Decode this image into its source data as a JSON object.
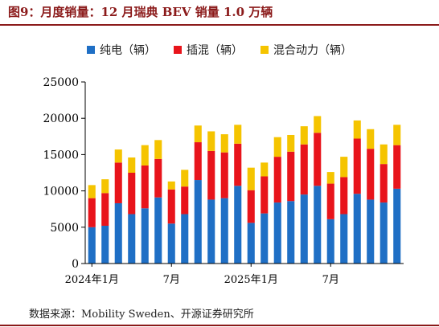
{
  "figure": {
    "title": "图9：月度销量：12 月瑞典 BEV 销量 1.0 万辆",
    "source": "数据来源：Mobility Sweden、开源证券研究所"
  },
  "chart_data": {
    "type": "bar",
    "stacked": true,
    "title": "",
    "xlabel": "",
    "ylabel": "",
    "ylim": [
      0,
      25000
    ],
    "yticks": [
      0,
      5000,
      10000,
      15000,
      20000,
      25000
    ],
    "grid": false,
    "legend_position": "top",
    "categories": [
      "2024-01",
      "2024-02",
      "2024-03",
      "2024-04",
      "2024-05",
      "2024-06",
      "2024-07",
      "2024-08",
      "2024-09",
      "2024-10",
      "2024-11",
      "2024-12",
      "2025-01",
      "2025-02",
      "2025-03",
      "2025-04",
      "2025-05",
      "2025-06",
      "2025-07",
      "2025-08",
      "2025-09",
      "2025-10",
      "2025-11",
      "2025-12"
    ],
    "xtick_labels": [
      {
        "index": 0,
        "label": "2024年1月"
      },
      {
        "index": 6,
        "label": "7月"
      },
      {
        "index": 12,
        "label": "2025年1月"
      },
      {
        "index": 18,
        "label": "7月"
      }
    ],
    "series": [
      {
        "name": "纯电（辆）",
        "color": "#1f6fc5",
        "values": [
          5000,
          5200,
          8300,
          6800,
          7600,
          9100,
          5500,
          6800,
          11500,
          8800,
          9000,
          10700,
          5600,
          6900,
          8400,
          8600,
          9500,
          10700,
          6100,
          6800,
          9600,
          8800,
          8400,
          10300
        ]
      },
      {
        "name": "插混（辆）",
        "color": "#e8141b",
        "values": [
          4000,
          4500,
          5600,
          5700,
          5900,
          5300,
          4700,
          3800,
          5200,
          6700,
          6300,
          5800,
          4500,
          5100,
          6300,
          6800,
          6900,
          7300,
          4900,
          5100,
          7600,
          7000,
          5300,
          6000
        ]
      },
      {
        "name": "混合动力（辆）",
        "color": "#f5c400",
        "values": [
          1800,
          1900,
          1800,
          2100,
          2800,
          2600,
          1100,
          2300,
          2300,
          2700,
          2500,
          2600,
          3100,
          1900,
          2700,
          2300,
          2500,
          2300,
          1600,
          2800,
          2500,
          2700,
          2700,
          2800
        ]
      }
    ]
  }
}
